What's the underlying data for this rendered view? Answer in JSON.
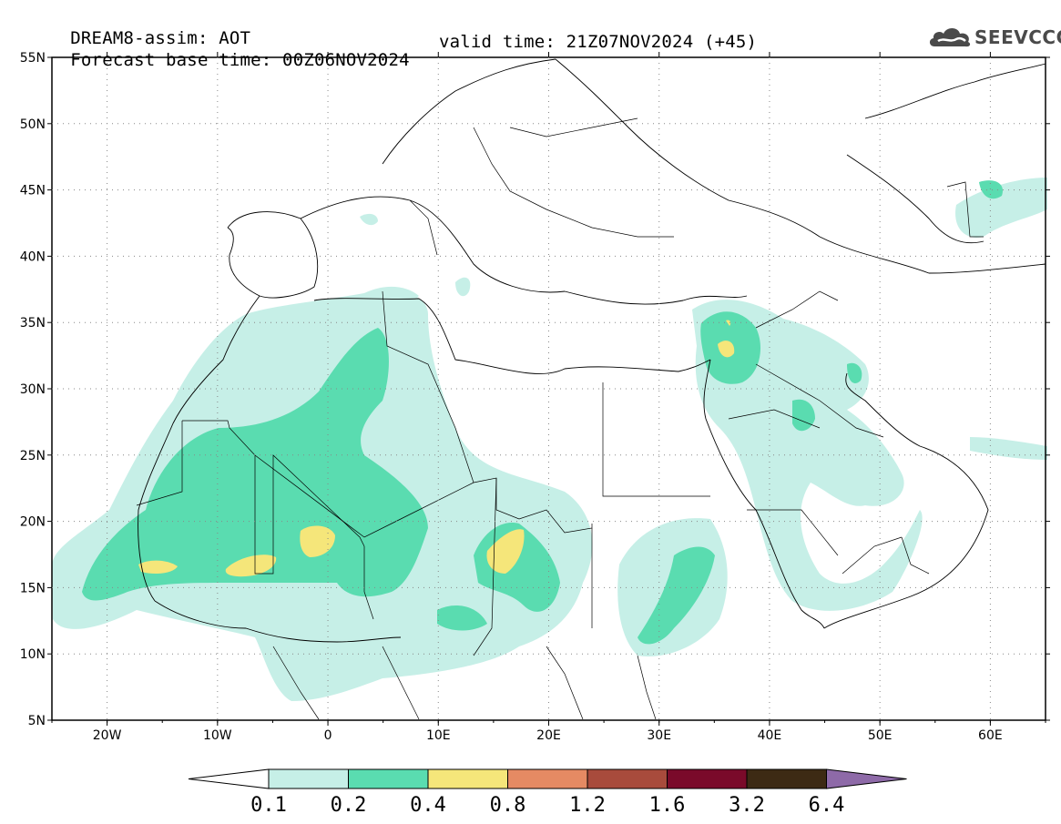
{
  "header": {
    "title_line1": "DREAM8-assim: AOT",
    "base_time": "Forecast base time: 00Z06NOV2024",
    "valid_time": "valid time: 21Z07NOV2024 (+45)"
  },
  "logo": {
    "text": "SEEVCCC",
    "icon": "cloud-logo-icon"
  },
  "map": {
    "lat_labels": [
      "55N",
      "50N",
      "45N",
      "40N",
      "35N",
      "30N",
      "25N",
      "20N",
      "15N",
      "10N",
      "5N"
    ],
    "lon_labels": [
      "20W",
      "10W",
      "0",
      "10E",
      "20E",
      "30E",
      "40E",
      "50E",
      "60E"
    ],
    "lat_range": [
      5,
      55
    ],
    "lon_range": [
      -25,
      65
    ]
  },
  "colorbar": {
    "labels": [
      "0.1",
      "0.2",
      "0.4",
      "0.8",
      "1.2",
      "1.6",
      "3.2",
      "6.4"
    ],
    "colors": [
      "#ffffff",
      "#c6efe7",
      "#5adcb0",
      "#f5e67a",
      "#e58a63",
      "#a84b3c",
      "#7a0a2a",
      "#3d2a14",
      "#8e6aa8"
    ]
  }
}
